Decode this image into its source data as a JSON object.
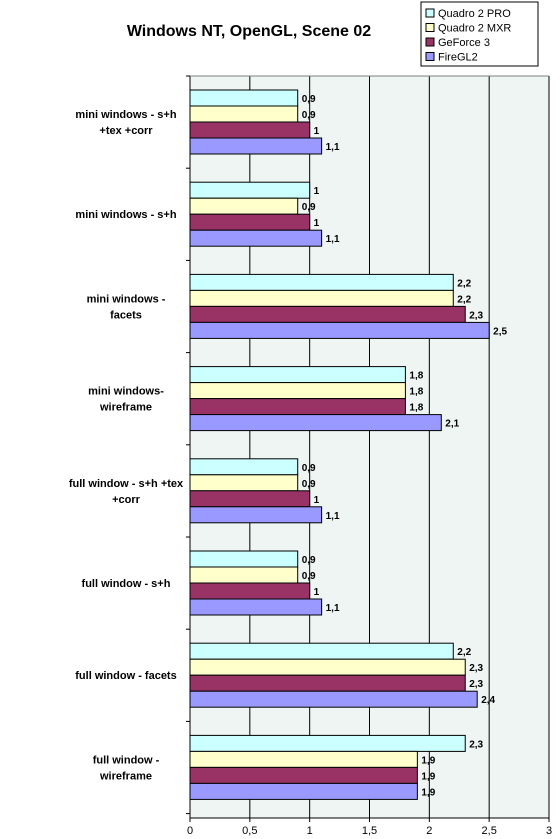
{
  "chart_data": {
    "type": "bar",
    "orientation": "horizontal",
    "title": "Windows NT, OpenGL, Scene 02",
    "categories": [
      [
        "mini windows - s+h",
        "+tex +corr"
      ],
      [
        "mini windows - s+h"
      ],
      [
        "mini windows -",
        "facets"
      ],
      [
        "mini windows-",
        "wireframe"
      ],
      [
        "full window - s+h +tex",
        "+corr"
      ],
      [
        "full window - s+h"
      ],
      [
        "full window - facets"
      ],
      [
        "full window -",
        "wireframe"
      ]
    ],
    "series": [
      {
        "name": "Quadro 2 PRO",
        "color": "#ccffff",
        "values": [
          0.9,
          1.0,
          2.2,
          1.8,
          0.9,
          0.9,
          2.2,
          2.3
        ],
        "labels": [
          "0,9",
          "1",
          "2,2",
          "1,8",
          "0,9",
          "0,9",
          "2,2",
          "2,3"
        ]
      },
      {
        "name": "Quadro 2 MXR",
        "color": "#ffffcc",
        "values": [
          0.9,
          0.9,
          2.2,
          1.8,
          0.9,
          0.9,
          2.3,
          1.9
        ],
        "labels": [
          "0,9",
          "0,9",
          "2,2",
          "1,8",
          "0,9",
          "0,9",
          "2,3",
          "1,9"
        ]
      },
      {
        "name": "GeForce 3",
        "color": "#993366",
        "values": [
          1.0,
          1.0,
          2.3,
          1.8,
          1.0,
          1.0,
          2.3,
          1.9
        ],
        "labels": [
          "1",
          "1",
          "2,3",
          "1,8",
          "1",
          "1",
          "2,3",
          "1,9"
        ]
      },
      {
        "name": "FireGL2",
        "color": "#9999ff",
        "values": [
          1.1,
          1.1,
          2.5,
          2.1,
          1.1,
          1.1,
          2.4,
          1.9
        ],
        "labels": [
          "1,1",
          "1,1",
          "2,5",
          "2,1",
          "1,1",
          "1,1",
          "2,4",
          "1,9"
        ]
      }
    ],
    "xlim": [
      0,
      3
    ],
    "xticks": [
      0,
      0.5,
      1,
      1.5,
      2,
      2.5,
      3
    ],
    "xtick_labels": [
      "0",
      "0,5",
      "1",
      "1,5",
      "2",
      "2,5",
      "3"
    ],
    "grid": true,
    "legend_position": "top-right",
    "plot_background": "#eef5f3"
  }
}
